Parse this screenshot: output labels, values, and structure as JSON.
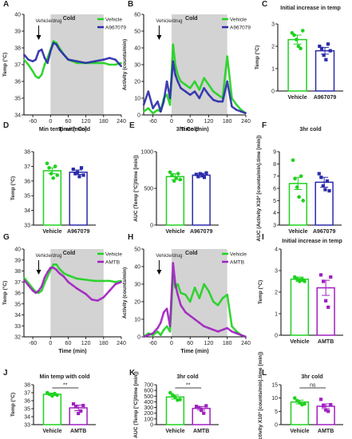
{
  "colors": {
    "vehicle": "#1fd21f",
    "a967079": "#2b2baa",
    "amtb": "#a020c0",
    "cold_shade": "#d3d3d3",
    "sig": "#000000"
  },
  "chart_data": [
    {
      "panel": "A",
      "type": "line",
      "title": "",
      "xlabel": "Time (min)",
      "ylabel": "Temp (°C)",
      "xlim": [
        -90,
        240
      ],
      "ylim": [
        34,
        40
      ],
      "xticks": [
        "-60",
        "0",
        "60",
        "120",
        "180",
        "240"
      ],
      "yticks": [
        "34",
        "35",
        "36",
        "37",
        "38",
        "39",
        "40"
      ],
      "shade": {
        "x0": 0,
        "x1": 180,
        "label": "Cold"
      },
      "arrow": {
        "x": -40,
        "label": "Vehicle/drug"
      },
      "legend": [
        "Vehicle",
        "A967079"
      ],
      "series": [
        {
          "name": "Vehicle",
          "color": "vehicle",
          "x": [
            -90,
            -75,
            -60,
            -50,
            -40,
            -30,
            -20,
            -10,
            0,
            10,
            20,
            30,
            45,
            60,
            90,
            120,
            150,
            180,
            200,
            220,
            240
          ],
          "y": [
            37.3,
            37.0,
            36.6,
            36.3,
            36.2,
            36.4,
            37.0,
            37.4,
            37.9,
            38.4,
            38.3,
            38.0,
            37.6,
            37.3,
            37.1,
            37.1,
            37.1,
            37.1,
            37.0,
            37.0,
            37.1
          ]
        },
        {
          "name": "A967079",
          "color": "a967079",
          "x": [
            -90,
            -75,
            -60,
            -50,
            -40,
            -30,
            -20,
            -10,
            0,
            10,
            20,
            30,
            45,
            60,
            90,
            120,
            150,
            180,
            200,
            220,
            240
          ],
          "y": [
            37.6,
            37.3,
            37.2,
            37.3,
            37.8,
            37.9,
            37.4,
            37.1,
            37.8,
            38.3,
            38.2,
            37.9,
            37.6,
            37.3,
            37.2,
            37.1,
            37.2,
            37.3,
            37.4,
            37.3,
            36.9
          ]
        }
      ]
    },
    {
      "panel": "B",
      "type": "line",
      "title": "",
      "xlabel": "Time (min)",
      "ylabel": "Activity (counts/min)",
      "xlim": [
        -90,
        240
      ],
      "ylim": [
        0,
        60
      ],
      "xticks": [
        "-60",
        "0",
        "60",
        "120",
        "180",
        "240"
      ],
      "yticks": [
        "0",
        "10",
        "20",
        "30",
        "40",
        "50",
        "60"
      ],
      "shade": {
        "x0": 0,
        "x1": 180,
        "label": "Cold"
      },
      "arrow": {
        "x": -40,
        "label": "Vehicle/drug"
      },
      "legend": [
        "Vehicle",
        "A967079"
      ],
      "series": [
        {
          "name": "Vehicle",
          "color": "vehicle",
          "x": [
            -90,
            -75,
            -60,
            -45,
            -35,
            -25,
            -15,
            -5,
            5,
            12,
            20,
            30,
            45,
            60,
            75,
            90,
            105,
            120,
            135,
            150,
            165,
            180,
            195,
            210,
            225,
            240
          ],
          "y": [
            2,
            4,
            1,
            3,
            2,
            10,
            12,
            6,
            42,
            30,
            24,
            20,
            18,
            16,
            20,
            15,
            22,
            18,
            14,
            12,
            10,
            35,
            10,
            6,
            3,
            1
          ]
        },
        {
          "name": "A967079",
          "color": "a967079",
          "x": [
            -90,
            -75,
            -60,
            -45,
            -35,
            -25,
            -15,
            -5,
            5,
            12,
            20,
            30,
            45,
            60,
            75,
            90,
            105,
            120,
            135,
            150,
            165,
            180,
            195,
            210,
            225,
            240
          ],
          "y": [
            6,
            14,
            4,
            8,
            2,
            8,
            20,
            10,
            32,
            24,
            20,
            16,
            14,
            12,
            14,
            10,
            16,
            12,
            9,
            8,
            8,
            20,
            5,
            3,
            2,
            1
          ]
        }
      ]
    },
    {
      "panel": "C",
      "type": "bar",
      "title": "Initial increase in temp",
      "ylabel": "Temp (°C)",
      "ylim": [
        0,
        3
      ],
      "yticks": [
        "0",
        "1",
        "2",
        "3"
      ],
      "categories": [
        "Vehicle",
        "A967079"
      ],
      "values": [
        2.3,
        1.8
      ],
      "errors": [
        0.2,
        0.15
      ],
      "colors": [
        "vehicle",
        "a967079"
      ],
      "points": [
        [
          2.6,
          2.5,
          2.3,
          2.0,
          1.9,
          2.7
        ],
        [
          2.0,
          1.9,
          1.6,
          1.4,
          2.1,
          1.8
        ]
      ]
    },
    {
      "panel": "D",
      "type": "bar",
      "title": "Min temp with Cold",
      "ylabel": "Temp (°C)",
      "ylim": [
        33,
        38
      ],
      "yticks": [
        "33",
        "34",
        "35",
        "36",
        "37",
        "38"
      ],
      "categories": [
        "Vehicle",
        "A967079"
      ],
      "values": [
        36.7,
        36.6
      ],
      "errors": [
        0.2,
        0.15
      ],
      "colors": [
        "vehicle",
        "a967079"
      ],
      "points": [
        [
          37.2,
          36.9,
          36.5,
          36.2,
          37.0,
          36.4
        ],
        [
          36.8,
          36.5,
          36.6,
          36.3,
          36.9,
          36.4
        ]
      ]
    },
    {
      "panel": "E",
      "type": "bar",
      "title": "3hr Cold",
      "ylabel": "AUC (Temp [°C]/time [min])",
      "ylim": [
        0,
        1000
      ],
      "yticks": [
        "0",
        "500",
        "1000"
      ],
      "categories": [
        "Vehicle",
        "A967079"
      ],
      "values": [
        660,
        680
      ],
      "errors": [
        40,
        25
      ],
      "colors": [
        "vehicle",
        "a967079"
      ],
      "points": [
        [
          720,
          680,
          600,
          640,
          700,
          620
        ],
        [
          690,
          660,
          700,
          680,
          650,
          710
        ]
      ]
    },
    {
      "panel": "F",
      "type": "bar",
      "title": "3hr cold",
      "ylabel": "AUC (Activity X10³ [counts/min].time [min])",
      "ylim": [
        3,
        9
      ],
      "yticks": [
        "3",
        "4",
        "5",
        "6",
        "7",
        "8",
        "9"
      ],
      "categories": [
        "Vehicle",
        "A967079"
      ],
      "values": [
        6.4,
        6.5
      ],
      "errors": [
        0.5,
        0.4
      ],
      "colors": [
        "vehicle",
        "a967079"
      ],
      "points": [
        [
          8.3,
          6.8,
          6.1,
          5.3,
          7.0,
          5.0
        ],
        [
          7.2,
          6.9,
          6.2,
          5.9,
          6.6,
          5.8
        ]
      ]
    },
    {
      "panel": "G",
      "type": "line",
      "title": "",
      "xlabel": "Time (min)",
      "ylabel": "Temp (°C)",
      "xlim": [
        -90,
        240
      ],
      "ylim": [
        32,
        40
      ],
      "xticks": [
        "-60",
        "0",
        "60",
        "120",
        "180",
        "240"
      ],
      "yticks": [
        "32",
        "33",
        "34",
        "35",
        "36",
        "37",
        "38",
        "39",
        "40"
      ],
      "shade": {
        "x0": 0,
        "x1": 180,
        "label": "Cold"
      },
      "arrow": {
        "x": -40,
        "label": "Vehicle/drug"
      },
      "legend": [
        "Vehicle",
        "AMTB"
      ],
      "series": [
        {
          "name": "Vehicle",
          "color": "vehicle",
          "x": [
            -90,
            -75,
            -60,
            -50,
            -40,
            -30,
            -20,
            -10,
            0,
            10,
            20,
            30,
            45,
            60,
            90,
            120,
            150,
            180,
            200,
            220,
            240
          ],
          "y": [
            37.4,
            36.9,
            36.4,
            36.1,
            36.0,
            36.2,
            36.9,
            37.5,
            38.1,
            38.6,
            38.6,
            38.2,
            37.8,
            37.6,
            37.3,
            37.2,
            37.1,
            37.1,
            37.1,
            37.0,
            37.1
          ]
        },
        {
          "name": "AMTB",
          "color": "amtb",
          "x": [
            -90,
            -75,
            -60,
            -50,
            -40,
            -30,
            -20,
            -10,
            0,
            10,
            20,
            30,
            45,
            60,
            90,
            120,
            140,
            160,
            180,
            200,
            220,
            240
          ],
          "y": [
            37.2,
            36.7,
            36.2,
            36.0,
            36.2,
            36.6,
            37.4,
            37.9,
            38.3,
            38.3,
            38.1,
            37.8,
            37.5,
            37.0,
            36.4,
            35.9,
            35.4,
            35.3,
            35.6,
            36.2,
            36.8,
            37.0
          ]
        }
      ]
    },
    {
      "panel": "H",
      "type": "line",
      "title": "",
      "xlabel": "Time (min)",
      "ylabel": "Activity (counts/min)",
      "xlim": [
        -90,
        240
      ],
      "ylim": [
        0,
        50
      ],
      "xticks": [
        "-60",
        "0",
        "60",
        "120",
        "180",
        "240"
      ],
      "yticks": [
        "0",
        "10",
        "20",
        "30",
        "40",
        "50"
      ],
      "shade": {
        "x0": 0,
        "x1": 180,
        "label": "Cold"
      },
      "arrow": {
        "x": -40,
        "label": "Vehicle/drug"
      },
      "legend": [
        "Vehicle",
        "AMTB"
      ],
      "series": [
        {
          "name": "Vehicle",
          "color": "vehicle",
          "x": [
            -90,
            -75,
            -60,
            -45,
            -35,
            -25,
            -15,
            -5,
            5,
            12,
            20,
            30,
            45,
            60,
            75,
            90,
            105,
            120,
            135,
            150,
            165,
            180,
            195,
            210,
            225,
            240
          ],
          "y": [
            0,
            2,
            1,
            3,
            1,
            4,
            6,
            3,
            35,
            28,
            30,
            25,
            24,
            20,
            28,
            22,
            30,
            26,
            20,
            18,
            22,
            24,
            6,
            3,
            1,
            0
          ]
        },
        {
          "name": "AMTB",
          "color": "amtb",
          "x": [
            -90,
            -75,
            -60,
            -45,
            -35,
            -25,
            -15,
            -5,
            5,
            12,
            20,
            30,
            45,
            60,
            75,
            90,
            105,
            120,
            135,
            150,
            165,
            180,
            195,
            210,
            225,
            240
          ],
          "y": [
            0,
            1,
            2,
            5,
            8,
            14,
            16,
            6,
            42,
            30,
            24,
            18,
            14,
            12,
            10,
            8,
            6,
            5,
            4,
            3,
            4,
            5,
            3,
            2,
            1,
            0
          ]
        }
      ]
    },
    {
      "panel": "I",
      "type": "bar",
      "title": "Initial increase in temp",
      "ylabel": "Temp (°C)",
      "ylim": [
        0,
        4
      ],
      "yticks": [
        "0",
        "1",
        "2",
        "3",
        "4"
      ],
      "categories": [
        "Vehicle",
        "AMTB"
      ],
      "values": [
        2.6,
        2.2
      ],
      "errors": [
        0.1,
        0.35
      ],
      "colors": [
        "vehicle",
        "amtb"
      ],
      "points": [
        [
          2.7,
          2.6,
          2.5,
          2.6,
          2.5
        ],
        [
          2.8,
          2.5,
          1.6,
          1.3,
          2.7
        ]
      ]
    },
    {
      "panel": "J",
      "type": "bar",
      "title": "Min temp with cold",
      "ylabel": "Temp (°C)",
      "ylim": [
        33,
        38
      ],
      "yticks": [
        "33",
        "34",
        "35",
        "36",
        "37",
        "38"
      ],
      "categories": [
        "Vehicle",
        "AMTB"
      ],
      "values": [
        36.8,
        35.1
      ],
      "errors": [
        0.15,
        0.35
      ],
      "colors": [
        "vehicle",
        "amtb"
      ],
      "points": [
        [
          37.0,
          36.8,
          36.6,
          36.9,
          36.7
        ],
        [
          35.6,
          35.3,
          34.4,
          34.7,
          35.4
        ]
      ],
      "sig": "**"
    },
    {
      "panel": "K",
      "type": "bar",
      "title": "3hr cold",
      "ylabel": "AUC (Temp [°C]/time [min])",
      "ylim": [
        0,
        700
      ],
      "yticks": [
        "0",
        "100",
        "200",
        "300",
        "400",
        "500",
        "600",
        "700"
      ],
      "categories": [
        "Vehicle",
        "AMTB"
      ],
      "values": [
        485,
        285
      ],
      "errors": [
        35,
        30
      ],
      "colors": [
        "vehicle",
        "amtb"
      ],
      "points": [
        [
          560,
          520,
          480,
          430,
          440
        ],
        [
          320,
          300,
          250,
          200,
          330
        ]
      ],
      "sig": "**"
    },
    {
      "panel": "L",
      "type": "bar",
      "title": "3hr cold",
      "ylabel": "AUC (Activity X10³ [counts/min].time [min])",
      "ylim": [
        0,
        15
      ],
      "yticks": [
        "0",
        "5",
        "10",
        "15"
      ],
      "categories": [
        "Vehicle",
        "AMTB"
      ],
      "values": [
        8.5,
        6.9
      ],
      "errors": [
        0.7,
        0.9
      ],
      "colors": [
        "vehicle",
        "amtb"
      ],
      "points": [
        [
          10.0,
          9.0,
          8.2,
          7.5,
          7.8
        ],
        [
          9.5,
          7.0,
          5.5,
          5.0,
          7.5
        ]
      ],
      "sig": "ns"
    }
  ]
}
